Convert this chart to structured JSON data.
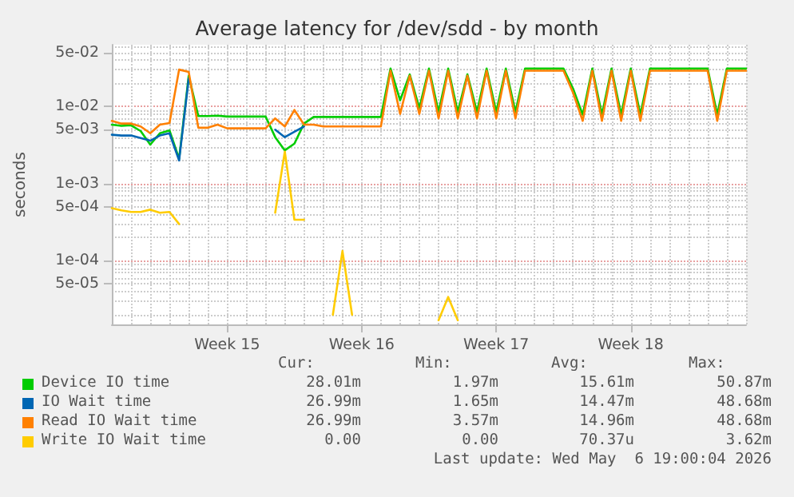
{
  "chart_data": {
    "type": "line",
    "title": "Average latency for /dev/sdd - by month",
    "ylabel": "seconds",
    "log": "y",
    "grid": true,
    "legend": "bottom",
    "marker": "none",
    "line_style": "solid",
    "categories": [
      null,
      null,
      null,
      null,
      null,
      null,
      null,
      null,
      null,
      null,
      null,
      null,
      "Week 15",
      null,
      null,
      null,
      null,
      null,
      null,
      null,
      null,
      null,
      null,
      null,
      null,
      null,
      "Week 16",
      null,
      null,
      null,
      null,
      null,
      null,
      null,
      null,
      null,
      null,
      null,
      null,
      null,
      "Week 17",
      null,
      null,
      null,
      null,
      null,
      null,
      null,
      null,
      null,
      null,
      null,
      null,
      null,
      "Week 18",
      null,
      null,
      null,
      null,
      null,
      null,
      null,
      null,
      null,
      null,
      null,
      null
    ],
    "ylim": [
      1.5e-05,
      0.063
    ],
    "yticks": [
      {
        "value": 0.05,
        "label": "5e-02"
      },
      {
        "value": 0.01,
        "label": "1e-02"
      },
      {
        "value": 0.005,
        "label": "5e-03"
      },
      {
        "value": 0.001,
        "label": "1e-03"
      },
      {
        "value": 0.0005,
        "label": "5e-04"
      },
      {
        "value": 0.0001,
        "label": "1e-04"
      },
      {
        "value": 5e-05,
        "label": "5e-05"
      }
    ],
    "series": [
      {
        "name": "Device IO time",
        "color": "#00cc00",
        "values": [
          0.0058,
          0.0056,
          0.0057,
          0.0048,
          0.0032,
          0.0045,
          0.0049,
          0.0021,
          0.025,
          0.0075,
          0.0075,
          0.0076,
          0.0074,
          0.0074,
          0.0074,
          0.0074,
          0.0074,
          0.004,
          0.0027,
          0.0033,
          0.006,
          0.0073,
          0.0073,
          0.0073,
          0.0073,
          0.0073,
          0.0073,
          0.0073,
          0.0073,
          0.031,
          0.012,
          0.026,
          0.0095,
          0.031,
          0.0085,
          0.031,
          0.0085,
          0.026,
          0.0085,
          0.031,
          0.0085,
          0.031,
          0.0085,
          0.031,
          0.031,
          0.031,
          0.031,
          0.031,
          0.017,
          0.0078,
          0.031,
          0.0078,
          0.031,
          0.0078,
          0.031,
          0.0078,
          0.031,
          0.031,
          0.031,
          0.031,
          0.031,
          0.031,
          0.031,
          0.0078,
          0.031,
          0.031,
          0.031
        ]
      },
      {
        "name": "IO Wait time",
        "color": "#0066b3",
        "values": [
          0.0043,
          0.0042,
          0.0042,
          0.0039,
          0.0036,
          0.0042,
          0.0045,
          0.002,
          0.023,
          null,
          null,
          null,
          null,
          null,
          null,
          null,
          null,
          0.005,
          0.004,
          0.0047,
          0.0055,
          null,
          null,
          null,
          null,
          null,
          null,
          null,
          null,
          null,
          null,
          null,
          null,
          null,
          null,
          null,
          null,
          null,
          null,
          null,
          null,
          null,
          null,
          null,
          null,
          null,
          null,
          null,
          null,
          null,
          null,
          null,
          null,
          null,
          null,
          null,
          null,
          null,
          null,
          null,
          null,
          null,
          null,
          null,
          null,
          null,
          null
        ]
      },
      {
        "name": "Read IO Wait time",
        "color": "#ff8000",
        "values": [
          0.0065,
          0.006,
          0.006,
          0.0055,
          0.0045,
          0.0058,
          0.0061,
          0.03,
          0.028,
          0.0053,
          0.0053,
          0.0058,
          0.0052,
          0.0052,
          0.0052,
          0.0052,
          0.0052,
          0.007,
          0.0055,
          0.009,
          0.0058,
          0.0058,
          0.0055,
          0.0055,
          0.0055,
          0.0055,
          0.0055,
          0.0055,
          0.0055,
          0.029,
          0.008,
          0.025,
          0.008,
          0.029,
          0.007,
          0.029,
          0.007,
          0.025,
          0.007,
          0.029,
          0.007,
          0.029,
          0.007,
          0.029,
          0.029,
          0.029,
          0.029,
          0.029,
          0.015,
          0.0065,
          0.029,
          0.0065,
          0.029,
          0.0065,
          0.029,
          0.0065,
          0.029,
          0.029,
          0.029,
          0.029,
          0.029,
          0.029,
          0.029,
          0.0065,
          0.029,
          0.029,
          0.029
        ]
      },
      {
        "name": "Write IO Wait time",
        "color": "#ffcc00",
        "values": [
          0.00048,
          0.00045,
          0.00043,
          0.00043,
          0.00046,
          0.00042,
          0.00043,
          0.0003,
          null,
          null,
          null,
          null,
          null,
          null,
          null,
          null,
          null,
          0.00042,
          0.0026,
          0.00034,
          0.00034,
          null,
          null,
          2e-05,
          0.000134,
          2e-05,
          null,
          null,
          null,
          null,
          null,
          null,
          null,
          null,
          1.7e-05,
          3.4e-05,
          1.7e-05,
          null,
          null,
          null,
          null,
          null,
          null,
          null,
          null,
          null,
          null,
          null,
          null,
          null,
          null,
          null,
          null,
          null,
          null,
          null,
          null,
          null,
          null,
          null,
          null,
          null,
          null,
          null,
          null,
          null,
          null
        ]
      }
    ],
    "annotations": [
      "Cur:",
      "Min:",
      "Avg:",
      "Max:",
      "28.01m",
      "1.97m",
      "15.61m",
      "50.87m",
      "26.99m",
      "1.65m",
      "14.47m",
      "48.68m",
      "26.99m",
      "3.57m",
      "14.96m",
      "48.68m",
      "0.00",
      "0.00",
      "70.37u",
      "3.62m",
      "Last update: Wed May  6 19:00:04 2026"
    ]
  }
}
